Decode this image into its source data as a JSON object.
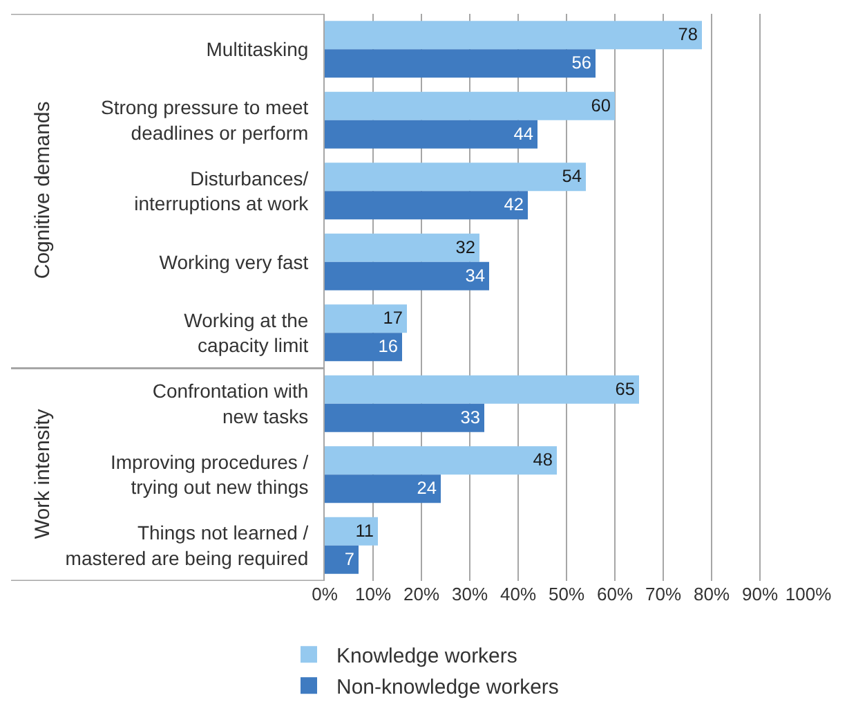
{
  "chart_data": {
    "type": "bar",
    "orientation": "horizontal",
    "categories": [
      "Multitasking",
      "Strong pressure to meet\ndeadlines or perform",
      "Disturbances/\ninterruptions at work",
      "Working very fast",
      "Working at the\ncapacity limit",
      "Confrontation with\nnew tasks",
      "Improving procedures /\ntrying out new things",
      "Things not learned /\nmastered are being required"
    ],
    "series": [
      {
        "name": "Knowledge workers",
        "color": "#95c9ef",
        "values": [
          78,
          60,
          54,
          32,
          17,
          65,
          48,
          11
        ]
      },
      {
        "name": "Non-knowledge workers",
        "color": "#3f7bc1",
        "values": [
          56,
          44,
          42,
          34,
          16,
          33,
          24,
          7
        ]
      }
    ],
    "xlim": [
      0,
      100
    ],
    "xticks": [
      {
        "value": 0,
        "label": "0%"
      },
      {
        "value": 10,
        "label": "10%"
      },
      {
        "value": 20,
        "label": "20%"
      },
      {
        "value": 30,
        "label": "30%"
      },
      {
        "value": 40,
        "label": "40%"
      },
      {
        "value": 50,
        "label": "50%"
      },
      {
        "value": 60,
        "label": "60%"
      },
      {
        "value": 70,
        "label": "70%"
      },
      {
        "value": 80,
        "label": "80%"
      },
      {
        "value": 90,
        "label": "90%"
      },
      {
        "value": 100,
        "label": "100%"
      }
    ],
    "annotations": [
      "Cognitive demands",
      "Work intensity"
    ],
    "grid": "x",
    "legend": "bottom",
    "data_labels": true
  }
}
